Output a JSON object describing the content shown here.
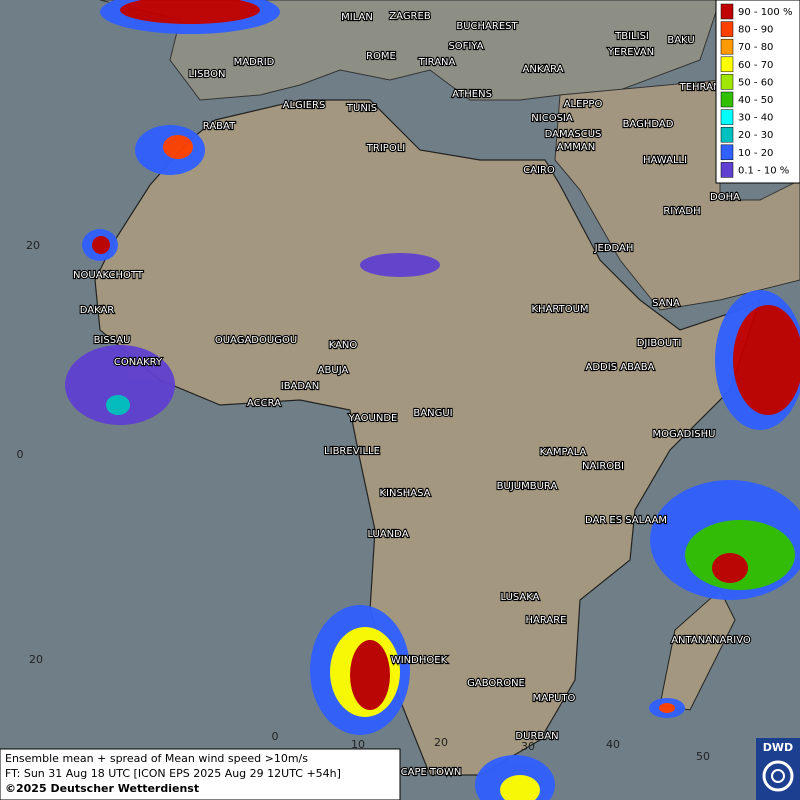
{
  "legend": {
    "items": [
      {
        "label": "90 - 100 %",
        "color": "#c00000"
      },
      {
        "label": "80 - 90",
        "color": "#ff4000"
      },
      {
        "label": "70 - 80",
        "color": "#ff9a00"
      },
      {
        "label": "60 - 70",
        "color": "#ffff00"
      },
      {
        "label": "50 - 60",
        "color": "#a0e600"
      },
      {
        "label": "40 - 50",
        "color": "#30c000"
      },
      {
        "label": "30 - 40",
        "color": "#00ffff"
      },
      {
        "label": "20 - 30",
        "color": "#00c0c0"
      },
      {
        "label": "10 - 20",
        "color": "#3060ff"
      },
      {
        "label": "0.1 - 10 %",
        "color": "#6040d0"
      }
    ]
  },
  "cities": [
    "MILAN",
    "ZAGREB",
    "BUCHAREST",
    "SOFIYA",
    "ROME",
    "TIRANA",
    "ANKARA",
    "MADRID",
    "LISBON",
    "TBILISI",
    "YEREVAN",
    "BAKU",
    "TEHRAN",
    "ALGIERS",
    "TUNIS",
    "ATHENS",
    "ALEPPO",
    "NICOSIA",
    "RABAT",
    "BAGHDAD",
    "DAMASCUS",
    "AMMAN",
    "TRIPOLI",
    "CAIRO",
    "HAWALLI",
    "DOHA",
    "RIYADH",
    "JEDDAH",
    "NOUAKCHOTT",
    "SANA",
    "DAKAR",
    "KHARTOUM",
    "BISSAU",
    "DJIBOUTI",
    "OUAGADOUGOU",
    "KANO",
    "CONAKRY",
    "ABUJA",
    "ADDIS ABABA",
    "IBADAN",
    "ACCRA",
    "YAOUNDE",
    "BANGUI",
    "MOGADISHU",
    "LIBREVILLE",
    "KAMPALA",
    "NAIROBI",
    "BUJUMBURA",
    "KINSHASA",
    "DAR ES SALAAM",
    "LUANDA",
    "LUSAKA",
    "HARARE",
    "ANTANANARIVO",
    "WINDHOEK",
    "GABORONE",
    "MAPUTO",
    "DURBAN",
    "CAPE TOWN"
  ],
  "grid_labels": [
    "20",
    "0",
    "20",
    "0",
    "10",
    "20",
    "30",
    "40",
    "50"
  ],
  "footer": {
    "lines": [
      "Ensemble mean + spread of Mean wind speed >10m/s",
      "FT: Sun 31 Aug 18 UTC [ICON EPS 2025 Aug 29 12UTC +54h]",
      "©2025 Deutscher Wetterdienst"
    ]
  },
  "logo": "DWD"
}
